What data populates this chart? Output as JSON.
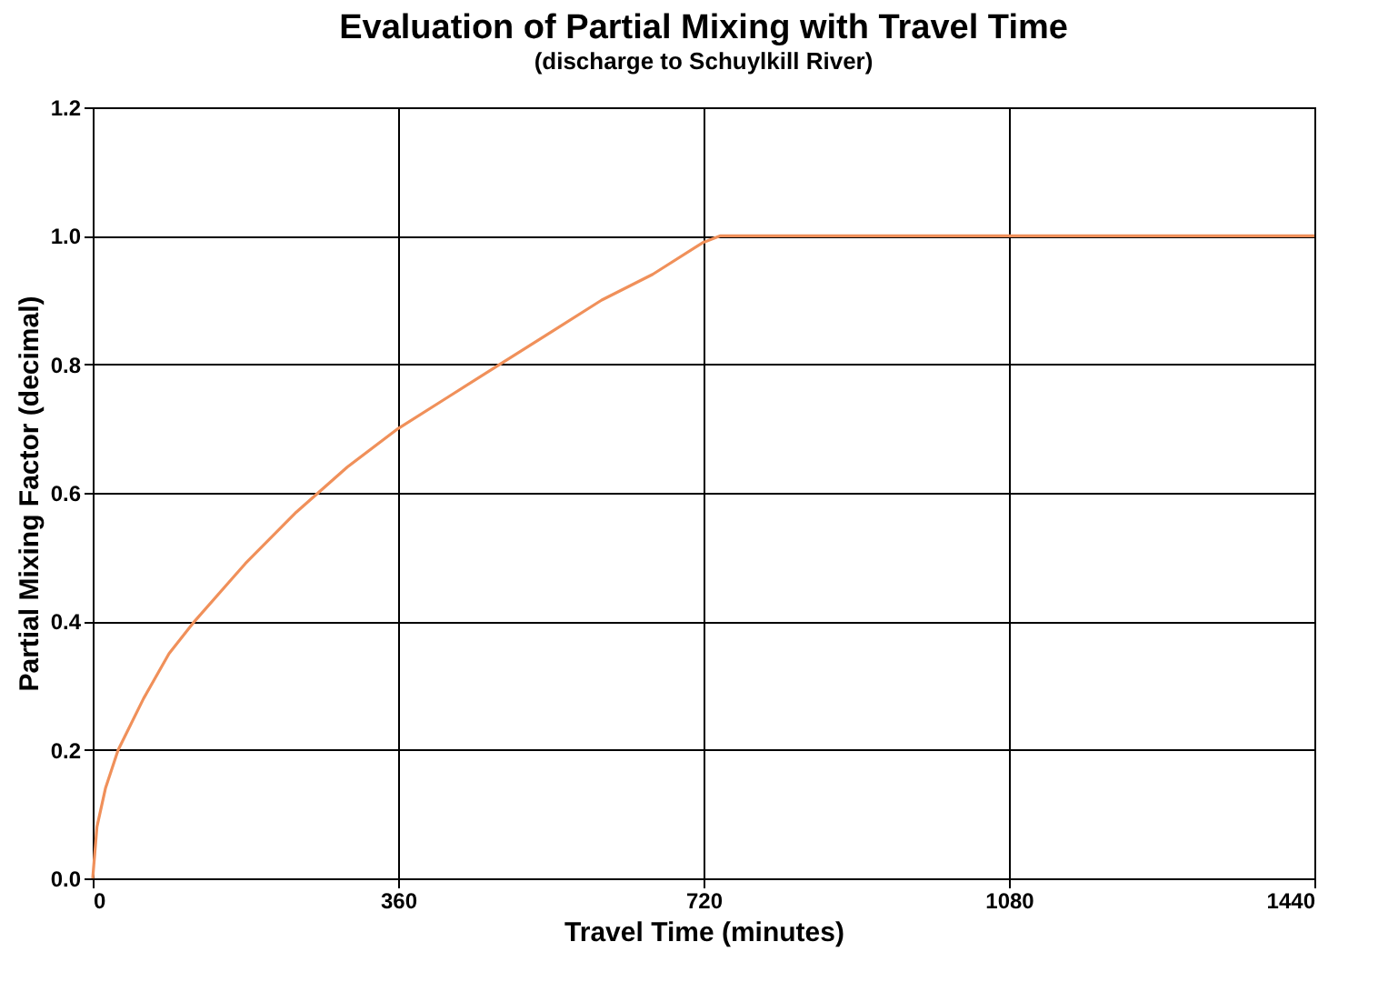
{
  "chart_data": {
    "type": "line",
    "title": "Evaluation of Partial Mixing with Travel Time",
    "subtitle": "(discharge to Schuylkill River)",
    "xlabel": "Travel Time (minutes)",
    "ylabel": "Partial Mixing Factor (decimal)",
    "x": [
      0,
      5,
      15,
      30,
      60,
      90,
      120,
      180,
      240,
      300,
      360,
      420,
      480,
      540,
      600,
      660,
      720,
      740,
      1440
    ],
    "series": [
      {
        "color": "#f0905a",
        "values": [
          0,
          0.08,
          0.14,
          0.2,
          0.28,
          0.35,
          0.4,
          0.49,
          0.57,
          0.64,
          0.7,
          0.75,
          0.8,
          0.85,
          0.9,
          0.94,
          0.99,
          1.0,
          1.0
        ]
      }
    ],
    "xlim": [
      0,
      1440
    ],
    "xticks": [
      0,
      360,
      720,
      1080,
      1440
    ],
    "ylim": [
      0,
      1.2
    ],
    "yticks": [
      {
        "value": 0,
        "label": "0.0"
      },
      {
        "value": 0.2,
        "label": "0.2"
      },
      {
        "value": 0.4,
        "label": "0.4"
      },
      {
        "value": 0.6,
        "label": "0.6"
      },
      {
        "value": 0.8,
        "label": "0.8"
      },
      {
        "value": 1.0,
        "label": "1.0"
      },
      {
        "value": 1.2,
        "label": "1.2"
      }
    ],
    "grid": true,
    "marker": "none",
    "line_style": "solid"
  }
}
